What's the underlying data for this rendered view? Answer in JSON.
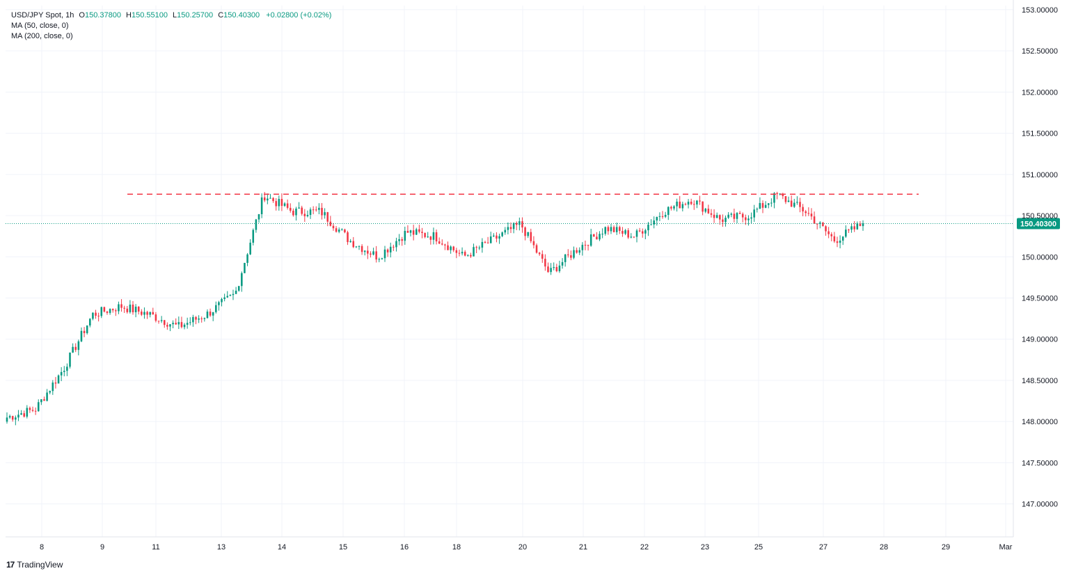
{
  "legend": {
    "symbol": "USD/JPY Spot",
    "interval": "1h",
    "open_label": "O",
    "open": "150.37800",
    "high_label": "H",
    "high": "150.55100",
    "low_label": "L",
    "low": "150.25700",
    "close_label": "C",
    "close": "150.40300",
    "change": "+0.02800 (+0.02%)",
    "indicators": [
      "MA (50, close, 0)",
      "MA (200, close, 0)"
    ]
  },
  "brand": {
    "logo": "17",
    "name": "TradingView"
  },
  "colors": {
    "up": "#089981",
    "down": "#f23645",
    "resistance": "#f23645",
    "last_price_bg": "#089981",
    "grid": "#f0f3fa"
  },
  "chart_data": {
    "type": "candlestick",
    "title": "USD/JPY Spot, 1h",
    "x_ticks": [
      "8",
      "9",
      "11",
      "13",
      "14",
      "15",
      "16",
      "18",
      "20",
      "21",
      "22",
      "23",
      "25",
      "27",
      "28",
      "29",
      "Mar"
    ],
    "y_ticks": [
      "147.00000",
      "147.50000",
      "148.00000",
      "148.50000",
      "149.00000",
      "149.50000",
      "150.00000",
      "150.50000",
      "151.00000",
      "151.50000",
      "152.00000",
      "152.50000",
      "153.00000"
    ],
    "ylim": [
      146.6,
      153.05
    ],
    "last_price": 150.403,
    "last_price_label": "150.40300",
    "resistance_level": 150.76,
    "grid": true,
    "anchors": [
      {
        "x": "8",
        "close": 148.05
      },
      {
        "x": "8",
        "close": 148.15
      },
      {
        "x": "8",
        "close": 148.65
      },
      {
        "x": "9",
        "close": 149.3
      },
      {
        "x": "9",
        "close": 149.4
      },
      {
        "x": "11",
        "close": 149.3
      },
      {
        "x": "11",
        "close": 149.15
      },
      {
        "x": "13",
        "close": 149.3
      },
      {
        "x": "13",
        "close": 149.55
      },
      {
        "x": "14",
        "close": 150.75
      },
      {
        "x": "14",
        "close": 150.55
      },
      {
        "x": "15",
        "close": 150.55
      },
      {
        "x": "15",
        "close": 150.2
      },
      {
        "x": "16",
        "close": 150.0
      },
      {
        "x": "16",
        "close": 150.3
      },
      {
        "x": "18",
        "close": 150.25
      },
      {
        "x": "18",
        "close": 150.0
      },
      {
        "x": "20",
        "close": 150.2
      },
      {
        "x": "20",
        "close": 150.4
      },
      {
        "x": "21",
        "close": 149.8
      },
      {
        "x": "21",
        "close": 150.1
      },
      {
        "x": "22",
        "close": 150.35
      },
      {
        "x": "22",
        "close": 150.25
      },
      {
        "x": "23",
        "close": 150.55
      },
      {
        "x": "23",
        "close": 150.7
      },
      {
        "x": "25",
        "close": 150.45
      },
      {
        "x": "25",
        "close": 150.5
      },
      {
        "x": "27",
        "close": 150.75
      },
      {
        "x": "27",
        "close": 150.55
      },
      {
        "x": "27",
        "close": 150.2
      },
      {
        "x": "27",
        "close": 150.4
      }
    ]
  }
}
